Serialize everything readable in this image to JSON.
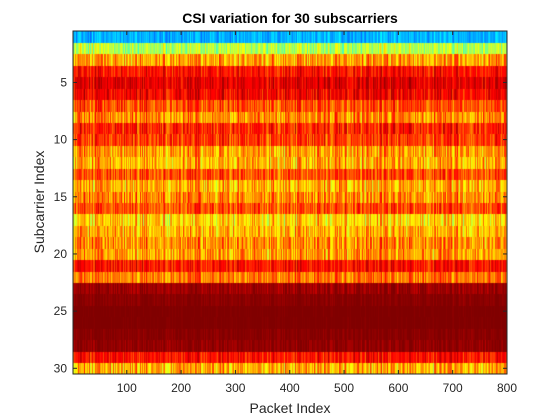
{
  "chart_data": {
    "type": "heatmap",
    "title": "CSI variation for 30 subscarriers",
    "xlabel": "Packet Index",
    "ylabel": "Subcarrier Index",
    "xlim": [
      1,
      800
    ],
    "ylim": [
      0.5,
      30.5
    ],
    "y_direction": "reverse",
    "x_ticks": [
      100,
      200,
      300,
      400,
      500,
      600,
      700,
      800
    ],
    "y_ticks": [
      5,
      10,
      15,
      20,
      25,
      30
    ],
    "colormap": "jet",
    "color_range": [
      0,
      1
    ],
    "rows": 30,
    "cols": 800,
    "grid": false,
    "legend": "none",
    "row_profile": [
      {
        "subcarrier": 1,
        "mean": 0.3,
        "spread": 0.06
      },
      {
        "subcarrier": 2,
        "mean": 0.55,
        "spread": 0.1
      },
      {
        "subcarrier": 3,
        "mean": 0.72,
        "spread": 0.12
      },
      {
        "subcarrier": 4,
        "mean": 0.86,
        "spread": 0.08
      },
      {
        "subcarrier": 5,
        "mean": 0.9,
        "spread": 0.07
      },
      {
        "subcarrier": 6,
        "mean": 0.88,
        "spread": 0.08
      },
      {
        "subcarrier": 7,
        "mean": 0.8,
        "spread": 0.1
      },
      {
        "subcarrier": 8,
        "mean": 0.74,
        "spread": 0.12
      },
      {
        "subcarrier": 9,
        "mean": 0.84,
        "spread": 0.1
      },
      {
        "subcarrier": 10,
        "mean": 0.82,
        "spread": 0.1
      },
      {
        "subcarrier": 11,
        "mean": 0.72,
        "spread": 0.12
      },
      {
        "subcarrier": 12,
        "mean": 0.7,
        "spread": 0.12
      },
      {
        "subcarrier": 13,
        "mean": 0.8,
        "spread": 0.1
      },
      {
        "subcarrier": 14,
        "mean": 0.7,
        "spread": 0.12
      },
      {
        "subcarrier": 15,
        "mean": 0.74,
        "spread": 0.12
      },
      {
        "subcarrier": 16,
        "mean": 0.8,
        "spread": 0.1
      },
      {
        "subcarrier": 17,
        "mean": 0.66,
        "spread": 0.12
      },
      {
        "subcarrier": 18,
        "mean": 0.7,
        "spread": 0.12
      },
      {
        "subcarrier": 19,
        "mean": 0.74,
        "spread": 0.12
      },
      {
        "subcarrier": 20,
        "mean": 0.72,
        "spread": 0.12
      },
      {
        "subcarrier": 21,
        "mean": 0.86,
        "spread": 0.08
      },
      {
        "subcarrier": 22,
        "mean": 0.76,
        "spread": 0.1
      },
      {
        "subcarrier": 23,
        "mean": 0.97,
        "spread": 0.04
      },
      {
        "subcarrier": 24,
        "mean": 0.99,
        "spread": 0.02
      },
      {
        "subcarrier": 25,
        "mean": 1.0,
        "spread": 0.01
      },
      {
        "subcarrier": 26,
        "mean": 1.0,
        "spread": 0.01
      },
      {
        "subcarrier": 27,
        "mean": 0.99,
        "spread": 0.02
      },
      {
        "subcarrier": 28,
        "mean": 0.98,
        "spread": 0.03
      },
      {
        "subcarrier": 29,
        "mean": 0.86,
        "spread": 0.08
      },
      {
        "subcarrier": 30,
        "mean": 0.7,
        "spread": 0.12
      }
    ]
  }
}
